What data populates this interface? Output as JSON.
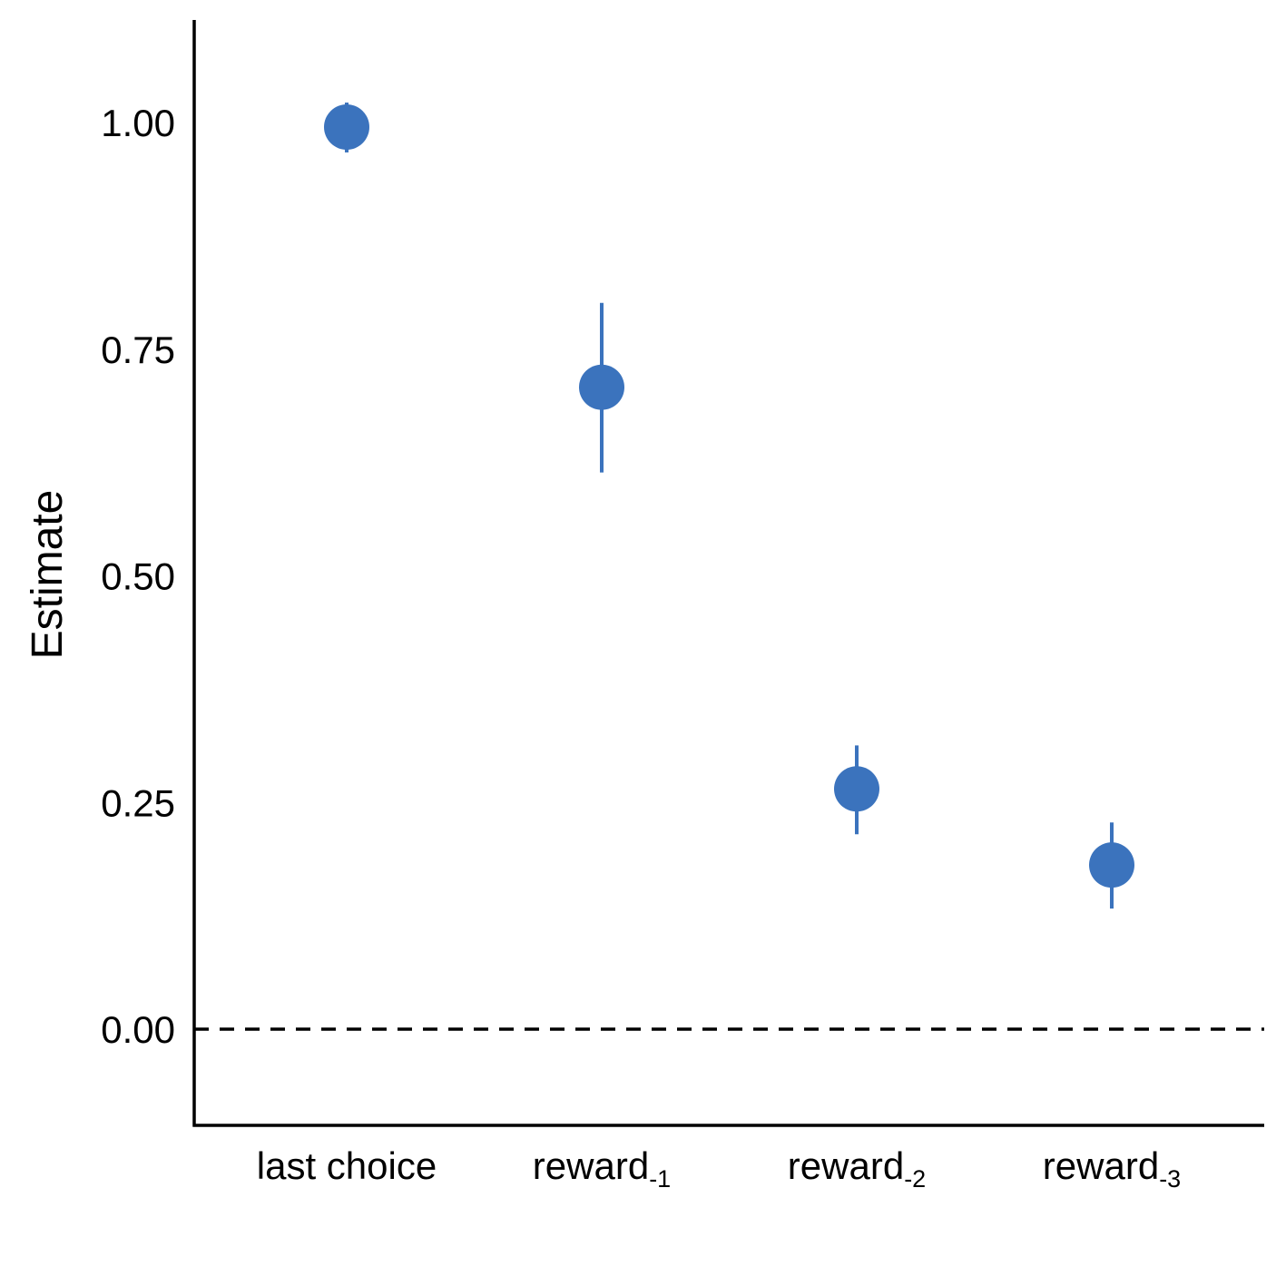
{
  "chart_data": {
    "type": "scatter",
    "title": "",
    "xlabel": "",
    "ylabel": "Estimate",
    "ylim": [
      -0.1,
      1.1
    ],
    "yticks": [
      "0.00",
      "0.25",
      "0.50",
      "0.75",
      "1.00"
    ],
    "reference_line": {
      "y": 0,
      "style": "dashed"
    },
    "categories": [
      {
        "base": "last choice",
        "sub": ""
      },
      {
        "base": "reward",
        "sub": "-1"
      },
      {
        "base": "reward",
        "sub": "-2"
      },
      {
        "base": "reward",
        "sub": "-3"
      }
    ],
    "series": [
      {
        "color": "#3b73bd",
        "values": [
          0.995,
          0.708,
          0.265,
          0.181
        ],
        "lower": [
          0.967,
          0.614,
          0.215,
          0.133
        ],
        "upper": [
          1.022,
          0.801,
          0.313,
          0.228
        ]
      }
    ],
    "grid": false,
    "legend": "none"
  }
}
